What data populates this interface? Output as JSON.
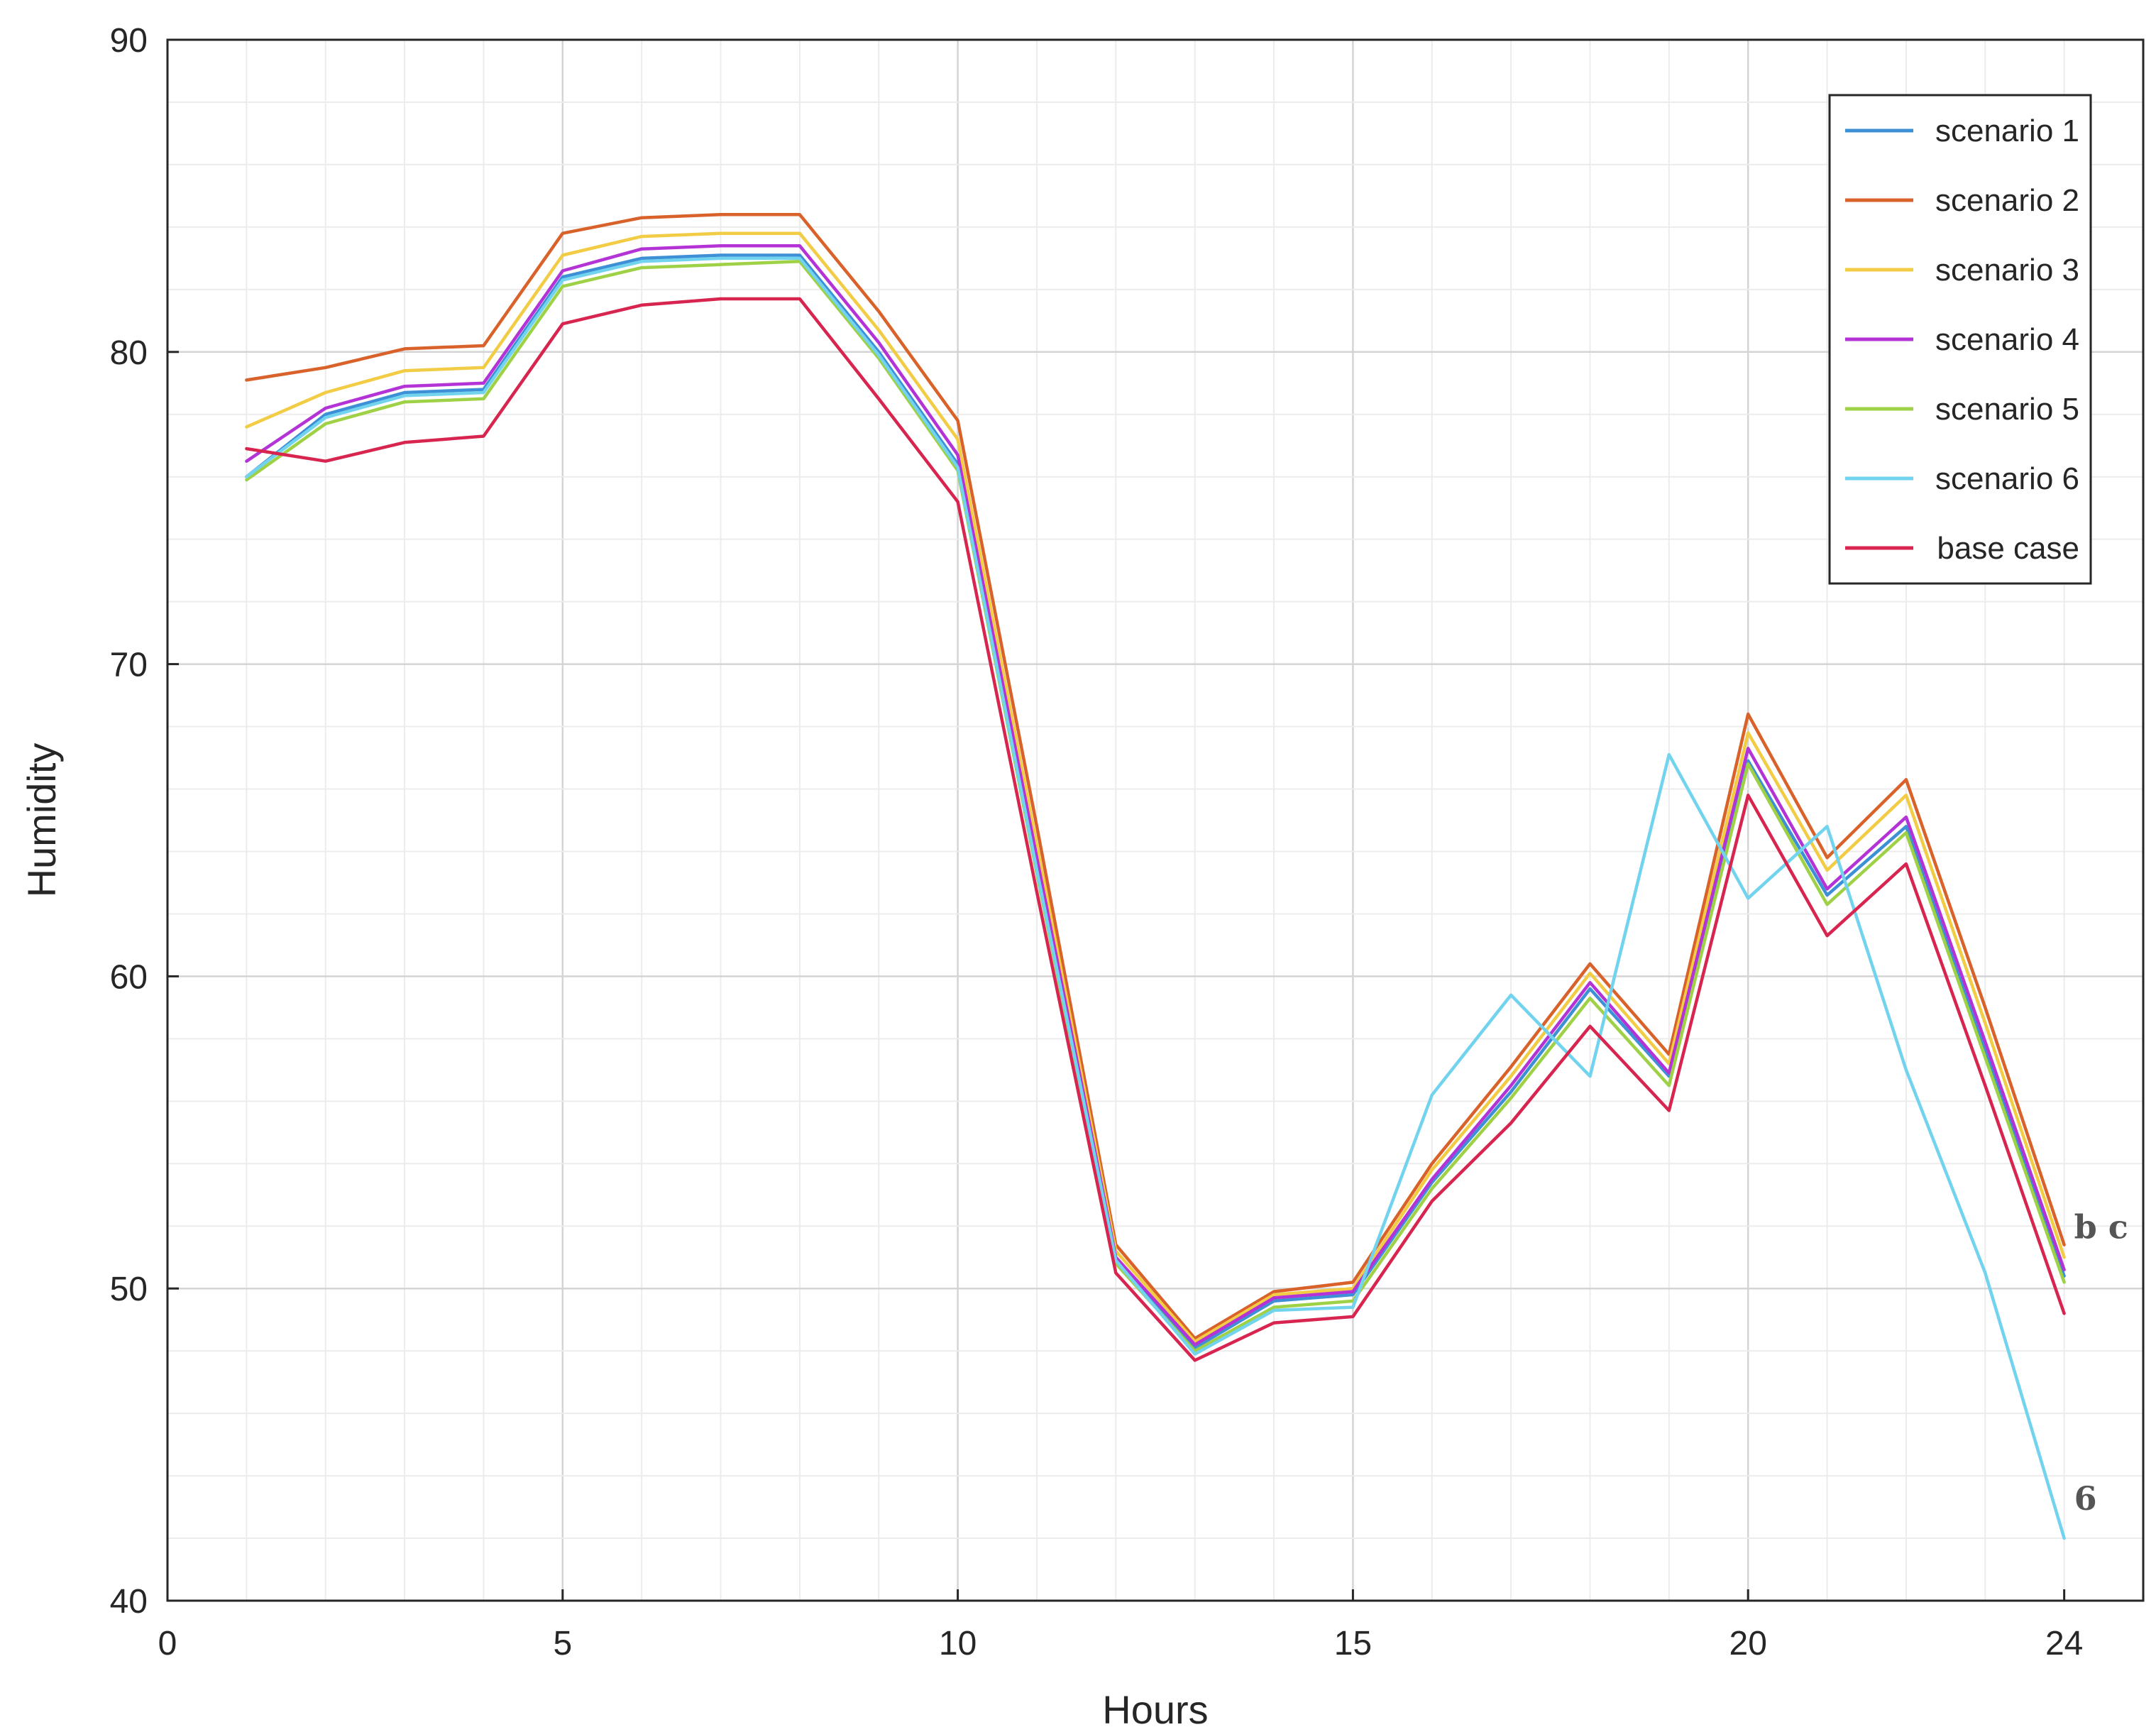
{
  "chart_data": {
    "type": "line",
    "title": "",
    "xlabel": "Hours",
    "ylabel": "Humidity",
    "xlim": [
      0,
      25
    ],
    "ylim": [
      40,
      90
    ],
    "xticks": [
      0,
      5,
      10,
      15,
      20,
      24
    ],
    "yticks": [
      40,
      50,
      60,
      70,
      80,
      90
    ],
    "grid": true,
    "minor_grid": true,
    "legend_position": "top-right",
    "x": [
      1,
      2,
      3,
      4,
      5,
      6,
      7,
      8,
      9,
      10,
      11,
      12,
      13,
      14,
      15,
      16,
      17,
      18,
      19,
      20,
      21,
      22,
      23,
      24
    ],
    "series": [
      {
        "name": "scenario 1",
        "color": "#3d8fd6",
        "values": [
          76.0,
          78.0,
          78.7,
          78.8,
          82.4,
          83.0,
          83.1,
          83.1,
          80.0,
          76.4,
          63.5,
          50.9,
          48.1,
          49.6,
          49.8,
          53.4,
          56.3,
          59.6,
          56.8,
          66.9,
          62.6,
          64.8,
          57.6,
          50.4
        ]
      },
      {
        "name": "scenario 2",
        "color": "#d9622b",
        "values": [
          79.1,
          79.5,
          80.1,
          80.2,
          83.8,
          84.3,
          84.4,
          84.4,
          81.3,
          77.8,
          64.8,
          51.4,
          48.4,
          49.9,
          50.2,
          54.0,
          57.1,
          60.4,
          57.5,
          68.4,
          63.8,
          66.3,
          59.0,
          51.4
        ]
      },
      {
        "name": "scenario 3",
        "color": "#f2cc44",
        "values": [
          77.6,
          78.7,
          79.4,
          79.5,
          83.1,
          83.7,
          83.8,
          83.8,
          80.7,
          77.2,
          64.2,
          51.2,
          48.3,
          49.8,
          50.0,
          53.8,
          56.8,
          60.1,
          57.2,
          67.8,
          63.4,
          65.8,
          58.5,
          51.0
        ]
      },
      {
        "name": "scenario 4",
        "color": "#b433d6",
        "values": [
          76.5,
          78.2,
          78.9,
          79.0,
          82.6,
          83.3,
          83.4,
          83.4,
          80.3,
          76.7,
          63.8,
          51.0,
          48.2,
          49.7,
          49.9,
          53.5,
          56.5,
          59.8,
          56.9,
          67.3,
          62.8,
          65.1,
          57.9,
          50.6
        ]
      },
      {
        "name": "scenario 5",
        "color": "#9fd147",
        "values": [
          75.9,
          77.7,
          78.4,
          78.5,
          82.1,
          82.7,
          82.8,
          82.9,
          79.8,
          76.2,
          63.3,
          50.8,
          48.0,
          49.4,
          49.6,
          53.2,
          56.1,
          59.3,
          56.5,
          66.8,
          62.3,
          64.6,
          57.4,
          50.2
        ]
      },
      {
        "name": "scenario 6",
        "color": "#72d3ee",
        "values": [
          76.0,
          77.9,
          78.6,
          78.7,
          82.3,
          82.9,
          83.0,
          83.0,
          79.9,
          76.3,
          63.4,
          50.9,
          47.9,
          49.3,
          49.4,
          56.2,
          59.4,
          56.8,
          67.1,
          62.5,
          64.8,
          57.0,
          50.5,
          42.0
        ]
      },
      {
        "name": "base case",
        "color": "#d8254f",
        "values": [
          76.9,
          76.5,
          77.1,
          77.3,
          80.9,
          81.5,
          81.7,
          81.7,
          78.5,
          75.2,
          62.7,
          50.5,
          47.7,
          48.9,
          49.1,
          52.8,
          55.3,
          58.4,
          55.7,
          65.8,
          61.3,
          63.6,
          56.5,
          49.2
        ]
      }
    ],
    "annotations": [
      {
        "text": "b c",
        "x": 24,
        "y": 51.2
      },
      {
        "text": "6",
        "x": 24,
        "y": 42.5
      }
    ]
  }
}
